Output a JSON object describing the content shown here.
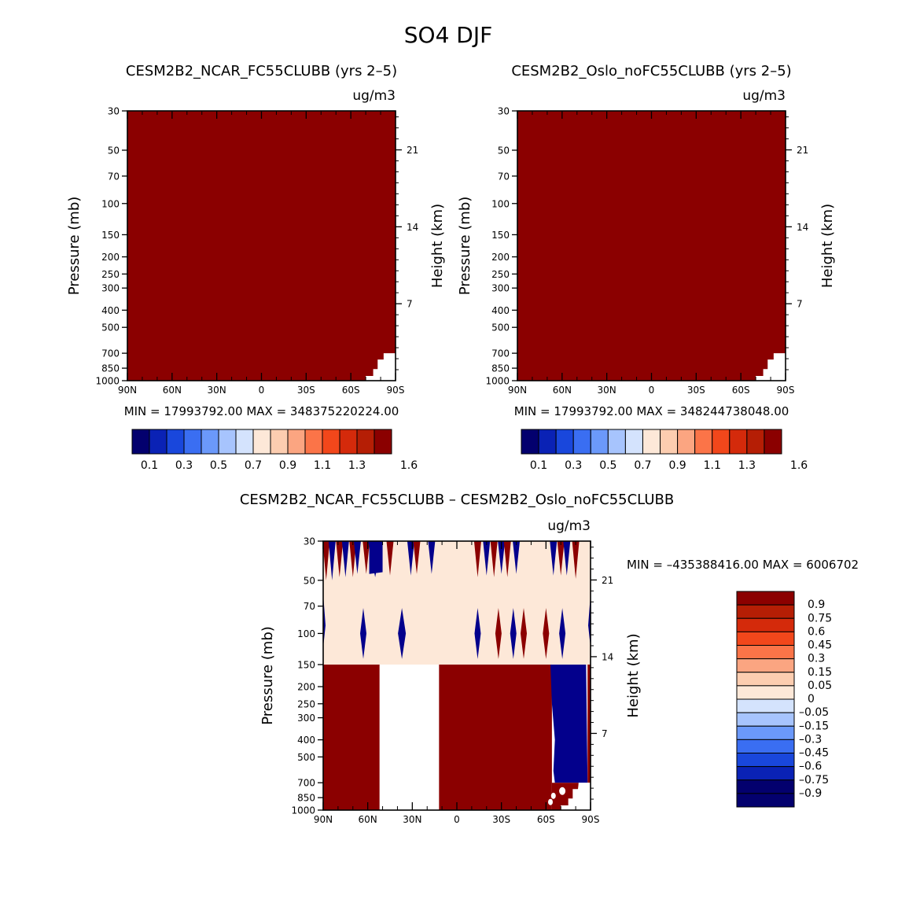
{
  "figure_title": "SO4 DJF",
  "chart_data": [
    {
      "type": "heatmap",
      "id": "panel-left",
      "title": "CESM2B2_NCAR_FC55CLUBB (yrs 2–5)",
      "units": "ug/m3",
      "xlabel": "",
      "ylabel": "Pressure (mb)",
      "y2label": "Height (km)",
      "x_ticks": [
        "90N",
        "60N",
        "30N",
        "0",
        "30S",
        "60S",
        "90S"
      ],
      "y_ticks": [
        30,
        50,
        70,
        100,
        150,
        200,
        250,
        300,
        400,
        500,
        700,
        850,
        1000
      ],
      "y2_ticks": [
        21,
        14,
        7
      ],
      "xlim": [
        90,
        -90
      ],
      "ylim": [
        1000,
        30
      ],
      "stats": "MIN = 17993792.00   MAX = 348375220224.00",
      "field": "entire domain above top color level (>1.6); below-ground mask near 90S",
      "colorbar_labels": [
        "0.1",
        "0.3",
        "0.5",
        "0.7",
        "0.9",
        "1.1",
        "1.3",
        "1.6"
      ]
    },
    {
      "type": "heatmap",
      "id": "panel-right",
      "title": "CESM2B2_Oslo_noFC55CLUBB (yrs 2–5)",
      "units": "ug/m3",
      "xlabel": "",
      "ylabel": "Pressure (mb)",
      "y2label": "Height (km)",
      "x_ticks": [
        "90N",
        "60N",
        "30N",
        "0",
        "30S",
        "60S",
        "90S"
      ],
      "y_ticks": [
        30,
        50,
        70,
        100,
        150,
        200,
        250,
        300,
        400,
        500,
        700,
        850,
        1000
      ],
      "y2_ticks": [
        21,
        14,
        7
      ],
      "xlim": [
        90,
        -90
      ],
      "ylim": [
        1000,
        30
      ],
      "stats": "MIN = 17993792.00   MAX = 348244738048.00",
      "field": "entire domain above top color level (>1.6); below-ground mask near 90S",
      "colorbar_labels": [
        "0.1",
        "0.3",
        "0.5",
        "0.7",
        "0.9",
        "1.1",
        "1.3",
        "1.6"
      ]
    },
    {
      "type": "heatmap",
      "id": "panel-diff",
      "title": "CESM2B2_NCAR_FC55CLUBB – CESM2B2_Oslo_noFC55CLUBB",
      "units": "ug/m3",
      "xlabel": "",
      "ylabel": "Pressure (mb)",
      "y2label": "Height (km)",
      "x_ticks": [
        "90N",
        "60N",
        "30N",
        "0",
        "30S",
        "60S",
        "90S"
      ],
      "y_ticks": [
        30,
        50,
        70,
        100,
        150,
        200,
        250,
        300,
        400,
        500,
        700,
        850,
        1000
      ],
      "y2_ticks": [
        21,
        14,
        7
      ],
      "xlim": [
        90,
        -90
      ],
      "ylim": [
        1000,
        30
      ],
      "stats": "MIN = –435388416.00   MAX = 6006702",
      "regions": [
        {
          "lat_from": 90,
          "lat_to": 52,
          "p_top": 150,
          "p_bottom": 1000,
          "value": "> 0.9"
        },
        {
          "lat_from": 52,
          "lat_to": 12,
          "p_top": 150,
          "p_bottom": 1000,
          "value": "0 to 0.05"
        },
        {
          "lat_from": 12,
          "lat_to": -64,
          "p_top": 150,
          "p_bottom": 1000,
          "value": "> 0.9"
        },
        {
          "lat_from": -64,
          "lat_to": -88,
          "p_top": 150,
          "p_bottom": 700,
          "value": "< -0.9"
        },
        {
          "lat_from": 90,
          "lat_to": -90,
          "p_top": 30,
          "p_bottom": 150,
          "value": "0.05 to 0.15 with alternating ±0.9 spikes"
        }
      ],
      "colorbar_labels": [
        "0.9",
        "0.75",
        "0.6",
        "0.45",
        "0.3",
        "0.15",
        "0.05",
        "0",
        "–0.05",
        "–0.15",
        "–0.3",
        "–0.45",
        "–0.6",
        "–0.75",
        "–0.9"
      ]
    }
  ],
  "colors": {
    "seq": [
      "#03006e",
      "#0a22b5",
      "#1947dc",
      "#3a6ef2",
      "#6b99fa",
      "#a7c4fd",
      "#d4e3fd",
      "#fde8d8",
      "#fccdb0",
      "#fba581",
      "#fb7448",
      "#f2471b",
      "#d42a0b",
      "#b51e05",
      "#8b0000"
    ],
    "diff": [
      "#8b0000",
      "#b51e05",
      "#d42a0b",
      "#f2471b",
      "#fb7448",
      "#fba581",
      "#fccdb0",
      "#fde8d8",
      "#d4e3fd",
      "#a7c4fd",
      "#6b99fa",
      "#3a6ef2",
      "#1947dc",
      "#0a22b5",
      "#03006e",
      "#03006e"
    ],
    "dark_red": "#8b0000",
    "dark_blue": "#03008c",
    "cream": "#fde8d8"
  }
}
